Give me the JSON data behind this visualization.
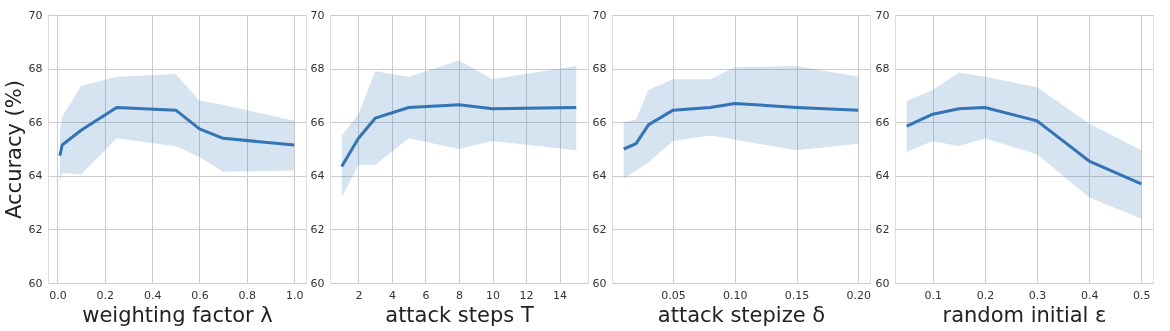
{
  "chart_data": [
    {
      "type": "line",
      "xlabel": "weighting factor λ",
      "ylabel": "Accuracy (%)",
      "xlim": [
        -0.04,
        1.05
      ],
      "xticks": [
        {
          "value": 0,
          "label": "0.0"
        },
        0.2,
        0.4,
        0.6,
        0.8,
        {
          "value": 1,
          "label": "1.0"
        }
      ],
      "ylim": [
        60,
        70
      ],
      "yticks": [
        60,
        62,
        64,
        66,
        68,
        70
      ],
      "grid": true,
      "marker": "none",
      "line_style": "solid",
      "series": [
        {
          "color": "#3274b5",
          "x": [
            0.01,
            0.02,
            0.1,
            0.25,
            0.5,
            0.6,
            0.7,
            1.0
          ],
          "values": [
            64.75,
            65.15,
            65.7,
            66.55,
            66.45,
            65.75,
            65.4,
            65.15
          ],
          "lower": [
            63.8,
            64.1,
            64.05,
            65.4,
            65.1,
            64.7,
            64.15,
            64.2
          ],
          "upper": [
            65.6,
            66.2,
            67.35,
            67.7,
            67.8,
            66.8,
            66.65,
            66.05
          ]
        }
      ]
    },
    {
      "type": "line",
      "xlabel": "attack steps T",
      "xlim": [
        0.3,
        15.7
      ],
      "xticks": [
        2,
        4,
        6,
        8,
        10,
        12,
        14
      ],
      "ylim": [
        60,
        70
      ],
      "yticks": [
        60,
        62,
        64,
        66,
        68,
        70
      ],
      "grid": true,
      "marker": "none",
      "line_style": "solid",
      "series": [
        {
          "color": "#3274b5",
          "x": [
            1,
            2,
            3,
            5,
            8,
            10,
            15
          ],
          "values": [
            64.35,
            65.4,
            66.15,
            66.55,
            66.65,
            66.5,
            66.55
          ],
          "lower": [
            63.2,
            64.4,
            64.4,
            65.4,
            65.0,
            65.3,
            64.95
          ],
          "upper": [
            65.5,
            66.3,
            67.9,
            67.7,
            68.3,
            67.6,
            68.1
          ]
        }
      ]
    },
    {
      "type": "line",
      "xlabel": "attack stepize δ",
      "xlim": [
        0.0005,
        0.2095
      ],
      "xticks": [
        0.05,
        {
          "value": 0.1,
          "label": "0.10"
        },
        0.15,
        {
          "value": 0.2,
          "label": "0.20"
        }
      ],
      "ylim": [
        60,
        70
      ],
      "yticks": [
        60,
        62,
        64,
        66,
        68,
        70
      ],
      "grid": true,
      "marker": "none",
      "line_style": "solid",
      "series": [
        {
          "color": "#3274b5",
          "x": [
            0.01,
            0.02,
            0.03,
            0.05,
            0.08,
            0.1,
            0.15,
            0.2
          ],
          "values": [
            65.0,
            65.2,
            65.9,
            66.45,
            66.55,
            66.7,
            66.55,
            66.45
          ],
          "lower": [
            63.9,
            64.2,
            64.5,
            65.3,
            65.5,
            65.35,
            64.95,
            65.2
          ],
          "upper": [
            66.0,
            66.1,
            67.2,
            67.6,
            67.6,
            68.05,
            68.1,
            67.7
          ]
        }
      ]
    },
    {
      "type": "line",
      "xlabel": "random initial ε",
      "xlim": [
        0.0275,
        0.5225
      ],
      "xticks": [
        0.1,
        0.2,
        0.3,
        0.4,
        0.5
      ],
      "ylim": [
        60,
        70
      ],
      "yticks": [
        60,
        62,
        64,
        66,
        68,
        70
      ],
      "grid": true,
      "marker": "none",
      "line_style": "solid",
      "series": [
        {
          "color": "#3274b5",
          "x": [
            0.05,
            0.1,
            0.15,
            0.2,
            0.3,
            0.4,
            0.5
          ],
          "values": [
            65.85,
            66.3,
            66.5,
            66.55,
            66.05,
            64.55,
            63.7
          ],
          "lower": [
            64.9,
            65.3,
            65.1,
            65.4,
            64.8,
            63.2,
            62.4
          ],
          "upper": [
            66.8,
            67.2,
            67.85,
            67.7,
            67.3,
            65.95,
            64.95
          ]
        }
      ]
    }
  ]
}
